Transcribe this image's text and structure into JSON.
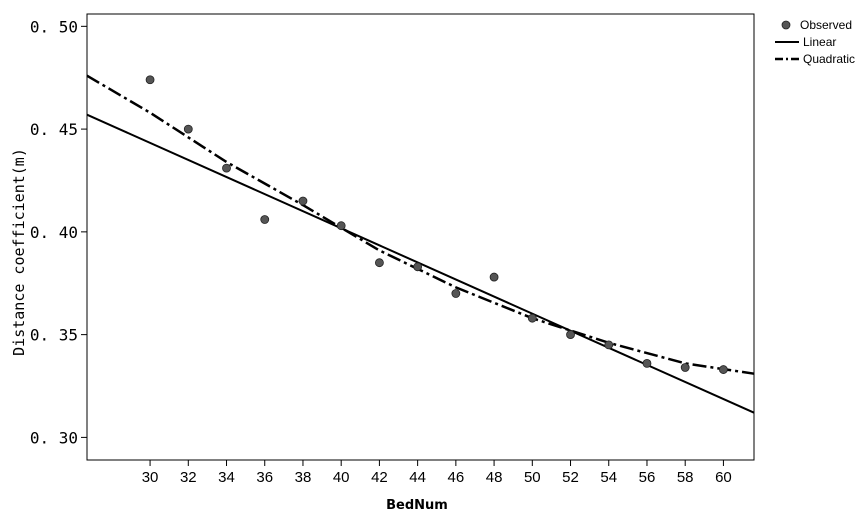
{
  "chart_data": {
    "type": "scatter",
    "xlabel": "BedNum",
    "ylabel": "Distance coefficient(m)",
    "xlim": [
      26.7,
      61.6
    ],
    "ylim": [
      0.289,
      0.506
    ],
    "xticks": [
      30,
      32,
      34,
      36,
      38,
      40,
      42,
      44,
      46,
      48,
      50,
      52,
      54,
      56,
      58,
      60
    ],
    "yticks": [
      0.3,
      0.35,
      0.4,
      0.45,
      0.5
    ],
    "ytick_labels": [
      "0. 30",
      "0. 35",
      "0. 40",
      "0. 45",
      "0. 50"
    ],
    "grid": false,
    "legend_position": "top-right, outside plot",
    "series": [
      {
        "name": "Observed",
        "kind": "scatter",
        "color": "#555555",
        "x": [
          30,
          32,
          34,
          36,
          38,
          40,
          42,
          44,
          46,
          48,
          50,
          52,
          54,
          56,
          58,
          60
        ],
        "y": [
          0.474,
          0.45,
          0.431,
          0.406,
          0.415,
          0.403,
          0.385,
          0.383,
          0.37,
          0.378,
          0.358,
          0.35,
          0.345,
          0.336,
          0.334,
          0.333
        ]
      },
      {
        "name": "Linear",
        "kind": "line",
        "style": "solid",
        "color": "#000000",
        "x": [
          26.7,
          61.6
        ],
        "y": [
          0.457,
          0.312
        ]
      },
      {
        "name": "Quadratic",
        "kind": "line",
        "style": "dash-dot",
        "color": "#000000",
        "x": [
          26.7,
          30,
          34,
          38,
          42,
          46,
          50,
          54,
          58,
          61.6
        ],
        "y": [
          0.476,
          0.458,
          0.434,
          0.413,
          0.391,
          0.373,
          0.358,
          0.346,
          0.336,
          0.331
        ]
      }
    ]
  }
}
